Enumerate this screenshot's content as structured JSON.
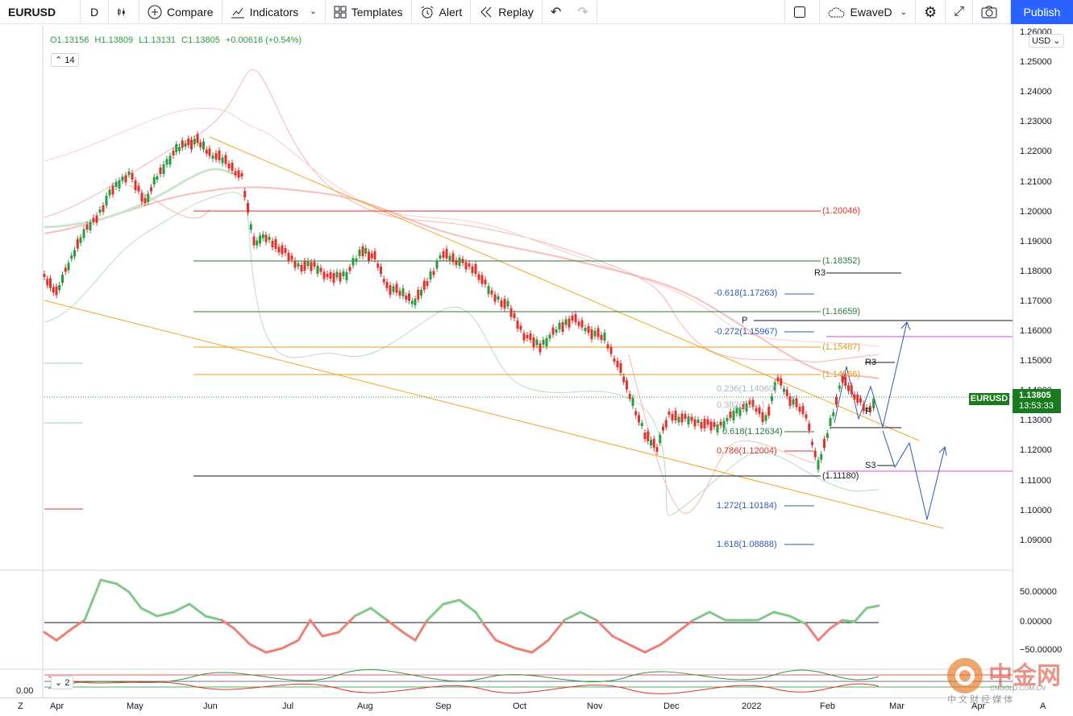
{
  "toolbar": {
    "symbol": "EURUSD",
    "interval": "D",
    "compare": "Compare",
    "indicators": "Indicators",
    "templates": "Templates",
    "alert": "Alert",
    "replay": "Replay",
    "layout_name": "EwaveD",
    "publish": "Publish"
  },
  "legend": {
    "open": "O1.13156",
    "high": "H1.13809",
    "low": "L1.13131",
    "close": "C1.13805",
    "change": "+0.00616 (+0.54%)",
    "indicator_count": "14",
    "osc2_count": "2"
  },
  "price_axis": {
    "currency": "USD",
    "ticks": [
      "1.26000",
      "1.25000",
      "1.24000",
      "1.23000",
      "1.22000",
      "1.21000",
      "1.20000",
      "1.19000",
      "1.18000",
      "1.17000",
      "1.16000",
      "1.15000",
      "1.14000",
      "1.13000",
      "1.12000",
      "1.11000",
      "1.10000",
      "1.09000"
    ],
    "osc_ticks": [
      "50.00000",
      "0.00000",
      "−50.00000"
    ],
    "osc2_left": "0.00",
    "last_symbol": "EURUSD",
    "last_price": "1.13805",
    "countdown": "13:53:33"
  },
  "time_axis": {
    "ticks": [
      "Apr",
      "May",
      "Jun",
      "Jul",
      "Aug",
      "Sep",
      "Oct",
      "Nov",
      "Dec",
      "2022",
      "Feb",
      "Mar",
      "Apr",
      "A"
    ],
    "z_label": "Z"
  },
  "levels": {
    "l120046": "(1.20046)",
    "l118352": "(1.18352)",
    "l116659": "(1.16659)",
    "l115487": "(1.15487)",
    "l114566": "(1.14566)",
    "l111180": "(1.11180)",
    "fib_m618": "-0.618(1.17263)",
    "fib_m272": "-0.272(1.15967)",
    "fib_236": "0.236(1.14060)",
    "fib_382": "0.382(1.1...)",
    "fib_618": "0.618(1.12634)",
    "fib_786": "0.786(1.12004)",
    "fib_1272": "1.272(1.10184)",
    "fib_1618": "1.618(1.08888)",
    "r3": "R3",
    "p": "P",
    "s3": "S3"
  },
  "watermark": {
    "brand": "中金网",
    "url": "CNGOLD.COM.CN",
    "tagline": "中 文 财 经 媒 体"
  },
  "colors": {
    "up": "#2a9a3f",
    "down": "#e0322d",
    "accent": "#2962ff",
    "trend": "#f5a623"
  }
}
